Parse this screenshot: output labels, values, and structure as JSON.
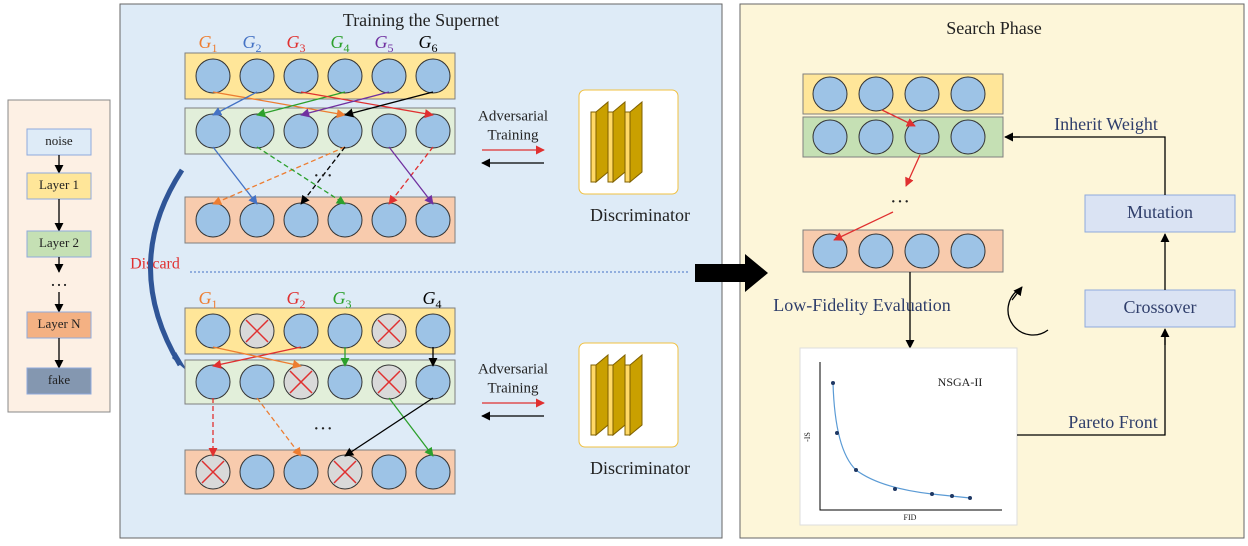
{
  "pipeline": {
    "nodes": [
      "noise",
      "Layer 1",
      "Layer 2",
      "…",
      "Layer N",
      "fake"
    ]
  },
  "supernet": {
    "title": "Training the Supernet",
    "top_generators": [
      {
        "main": "G",
        "sub": "1"
      },
      {
        "main": "G",
        "sub": "2"
      },
      {
        "main": "G",
        "sub": "3"
      },
      {
        "main": "G",
        "sub": "4"
      },
      {
        "main": "G",
        "sub": "5"
      },
      {
        "main": "G",
        "sub": "6"
      }
    ],
    "top_ellipsis": "…",
    "adversarial_top": [
      "Adversarial",
      "Training"
    ],
    "discriminator_top": "Discriminator",
    "discard": "Discard",
    "bottom_generators": [
      {
        "main": "G",
        "sub": "1"
      },
      {
        "main": "G",
        "sub": "2"
      },
      {
        "main": "G",
        "sub": "3"
      },
      {
        "main": "G",
        "sub": "4"
      }
    ],
    "bottom_ellipsis": "…",
    "adversarial_bottom": [
      "Adversarial",
      "Training"
    ],
    "discriminator_bottom": "Discriminator"
  },
  "search": {
    "title": "Search Phase",
    "inherit": "Inherit Weight",
    "mutation": "Mutation",
    "crossover": "Crossover",
    "ellipsis": "…",
    "evaluation": "Low-Fidelity Evaluation",
    "pareto": "Pareto Front",
    "plot": {
      "title": "NSGA-II",
      "y_label": "-IS",
      "x_label": "FID"
    }
  }
}
